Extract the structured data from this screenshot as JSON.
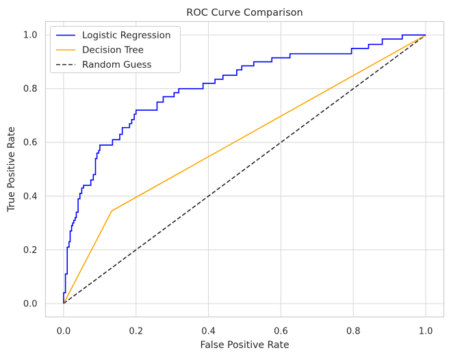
{
  "chart_data": {
    "type": "line",
    "title": "ROC Curve Comparison",
    "xlabel": "False Positive Rate",
    "ylabel": "True Positive Rate",
    "xlim": [
      -0.05,
      1.05
    ],
    "ylim": [
      -0.05,
      1.05
    ],
    "xticks": [
      "0.0",
      "0.2",
      "0.4",
      "0.6",
      "0.8",
      "1.0"
    ],
    "yticks": [
      "0.0",
      "0.2",
      "0.4",
      "0.6",
      "0.8",
      "1.0"
    ],
    "grid": true,
    "legend": "upper left",
    "series": [
      {
        "name": "Logistic Regression",
        "color": "#0000ff",
        "style": "solid",
        "x": [
          0.0,
          0.0,
          0.005,
          0.005,
          0.01,
          0.01,
          0.015,
          0.015,
          0.018,
          0.018,
          0.022,
          0.022,
          0.025,
          0.025,
          0.028,
          0.028,
          0.032,
          0.032,
          0.035,
          0.035,
          0.04,
          0.04,
          0.045,
          0.045,
          0.05,
          0.05,
          0.055,
          0.055,
          0.075,
          0.075,
          0.082,
          0.082,
          0.088,
          0.088,
          0.092,
          0.092,
          0.097,
          0.097,
          0.1,
          0.1,
          0.135,
          0.135,
          0.155,
          0.155,
          0.162,
          0.162,
          0.182,
          0.182,
          0.188,
          0.188,
          0.195,
          0.195,
          0.2,
          0.2,
          0.258,
          0.258,
          0.275,
          0.275,
          0.305,
          0.305,
          0.318,
          0.318,
          0.385,
          0.385,
          0.418,
          0.418,
          0.44,
          0.44,
          0.478,
          0.478,
          0.492,
          0.492,
          0.525,
          0.525,
          0.575,
          0.575,
          0.625,
          0.625,
          0.795,
          0.795,
          0.842,
          0.842,
          0.88,
          0.88,
          0.935,
          0.935,
          1.0
        ],
        "y": [
          0.0,
          0.04,
          0.04,
          0.11,
          0.11,
          0.21,
          0.21,
          0.23,
          0.23,
          0.27,
          0.27,
          0.29,
          0.29,
          0.3,
          0.3,
          0.31,
          0.31,
          0.32,
          0.32,
          0.34,
          0.34,
          0.39,
          0.39,
          0.41,
          0.41,
          0.43,
          0.43,
          0.44,
          0.44,
          0.46,
          0.46,
          0.48,
          0.48,
          0.54,
          0.54,
          0.56,
          0.56,
          0.57,
          0.57,
          0.59,
          0.59,
          0.61,
          0.61,
          0.63,
          0.63,
          0.655,
          0.655,
          0.67,
          0.67,
          0.685,
          0.685,
          0.705,
          0.705,
          0.72,
          0.72,
          0.75,
          0.75,
          0.77,
          0.77,
          0.785,
          0.785,
          0.8,
          0.8,
          0.82,
          0.82,
          0.835,
          0.835,
          0.85,
          0.85,
          0.87,
          0.87,
          0.885,
          0.885,
          0.9,
          0.9,
          0.915,
          0.915,
          0.93,
          0.93,
          0.95,
          0.95,
          0.965,
          0.965,
          0.985,
          0.985,
          1.0,
          1.0
        ]
      },
      {
        "name": "Decision Tree",
        "color": "#ffa500",
        "style": "solid",
        "x": [
          0.0,
          0.133,
          1.0
        ],
        "y": [
          0.0,
          0.345,
          1.0
        ]
      },
      {
        "name": "Random Guess",
        "color": "#262626",
        "style": "dashed",
        "x": [
          0.0,
          1.0
        ],
        "y": [
          0.0,
          1.0
        ]
      }
    ]
  },
  "colors": {
    "grid": "#d9d9d9",
    "axes_edge": "#cccccc",
    "text": "#262626",
    "background": "#ffffff"
  }
}
